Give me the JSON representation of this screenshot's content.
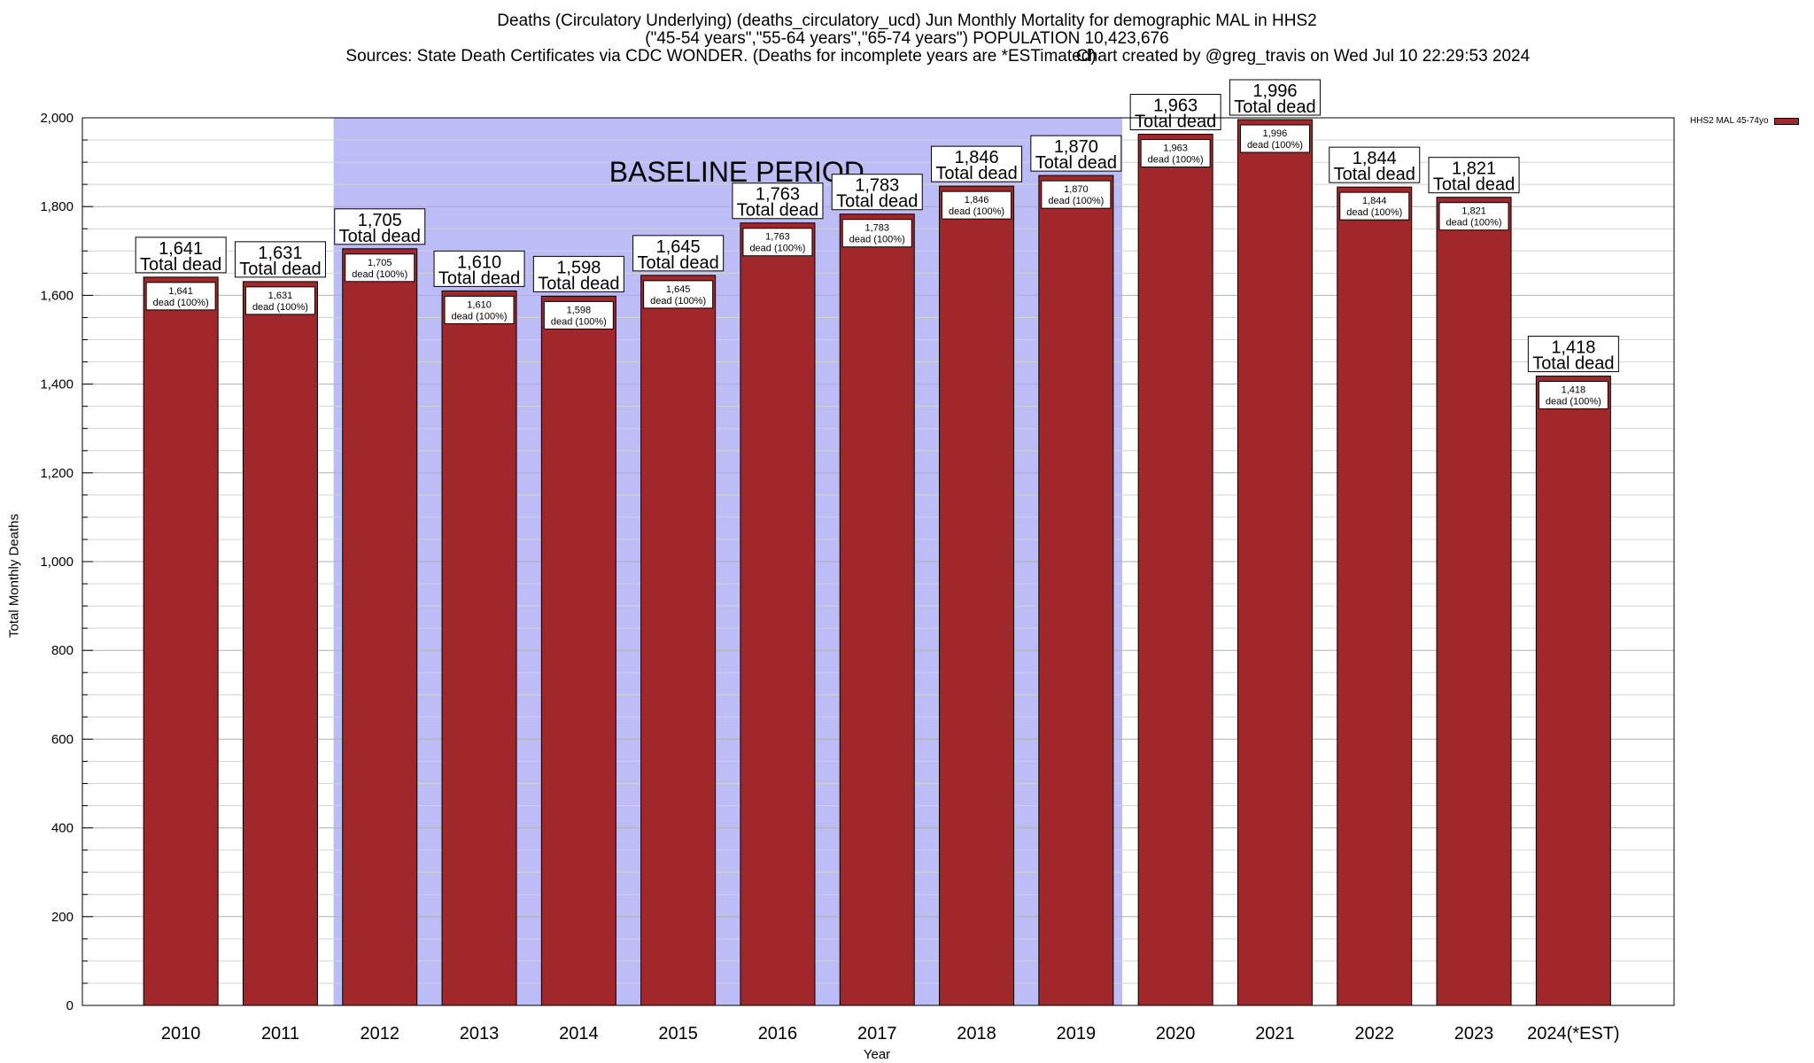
{
  "chart_data": {
    "type": "bar",
    "title_lines": [
      "Deaths (Circulatory Underlying) (deaths_circulatory_ucd) Jun Monthly Mortality for demographic MAL in HHS2",
      "(\"45-54 years\",\"55-64 years\",\"65-74 years\") POPULATION 10,423,676",
      "Sources: State Death Certificates via CDC WONDER. (Deaths for incomplete years are *ESTimated)"
    ],
    "credit": "Chart created by @greg_travis on Wed Jul 10 22:29:53 2024",
    "xlabel": "Year",
    "ylabel": "Total Monthly Deaths",
    "ylim": [
      0,
      2000
    ],
    "yticks": [
      "0",
      "200",
      "400",
      "600",
      "800",
      "1,000",
      "1,200",
      "1,400",
      "1,600",
      "1,800",
      "2,000"
    ],
    "categories": [
      "2010",
      "2011",
      "2012",
      "2013",
      "2014",
      "2015",
      "2016",
      "2017",
      "2018",
      "2019",
      "2020",
      "2021",
      "2022",
      "2023",
      "2024(*EST)"
    ],
    "series": [
      {
        "name": "HHS2 MAL 45-74yo",
        "color": "#a0282a",
        "values": [
          1641,
          1631,
          1705,
          1610,
          1598,
          1645,
          1763,
          1783,
          1846,
          1870,
          1963,
          1996,
          1844,
          1821,
          1418
        ]
      }
    ],
    "value_labels": [
      "1,641",
      "1,631",
      "1,705",
      "1,610",
      "1,598",
      "1,645",
      "1,763",
      "1,783",
      "1,846",
      "1,870",
      "1,963",
      "1,996",
      "1,844",
      "1,821",
      "1,418"
    ],
    "top_label_suffix": "Total dead",
    "inner_label_suffix": "dead (100%)",
    "baseline_period": {
      "label": "BASELINE PERIOD",
      "from": "2012",
      "to": "2019",
      "color": "#bcbcf7"
    },
    "legend_position": "top-right",
    "grid": "horizontal"
  }
}
